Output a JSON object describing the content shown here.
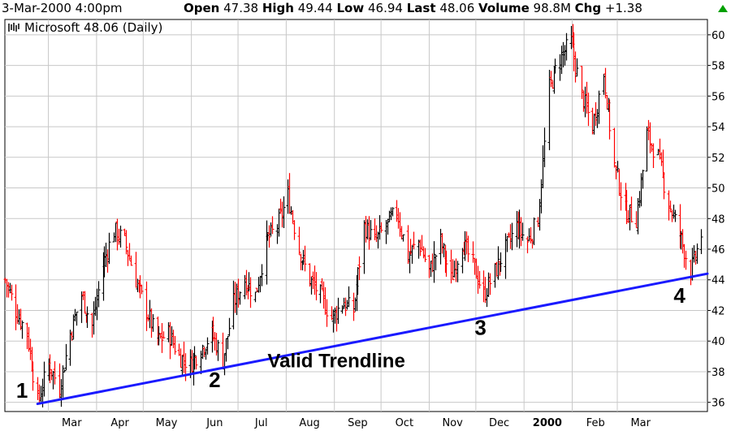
{
  "header": {
    "datetime": "3-Mar-2000 4:00pm",
    "open_label": "Open",
    "open_value": "47.38",
    "high_label": "High",
    "high_value": "49.44",
    "low_label": "Low",
    "low_value": "46.94",
    "last_label": "Last",
    "last_value": "48.06",
    "volume_label": "Volume",
    "volume_value": "98.8M",
    "chg_label": "Chg",
    "chg_value": "+1.38",
    "up_color": "#00a000"
  },
  "chart_data": {
    "type": "line",
    "style": "ohlc-bars",
    "legend": "Microsoft 48.06 (Daily)",
    "legend_placement": "top-left",
    "ylim": [
      35.4,
      61
    ],
    "y_ticks": [
      36,
      38,
      40,
      42,
      44,
      46,
      48,
      50,
      52,
      54,
      56,
      58,
      60
    ],
    "x_ticks": [
      "Mar",
      "Apr",
      "May",
      "Jun",
      "Jul",
      "Aug",
      "Sep",
      "Oct",
      "Nov",
      "Dec",
      "2000",
      "Feb",
      "Mar"
    ],
    "grid": true,
    "colors": {
      "up": "#000000",
      "down": "#ff0000",
      "trendline": "#1a1aff"
    },
    "price_path": [
      [
        "1999-02-01",
        44.0
      ],
      [
        "1999-02-08",
        42.0
      ],
      [
        "1999-02-15",
        40.5
      ],
      [
        "1999-02-22",
        36.0
      ],
      [
        "1999-03-01",
        38.5
      ],
      [
        "1999-03-08",
        37.0
      ],
      [
        "1999-03-15",
        40.5
      ],
      [
        "1999-03-22",
        43.0
      ],
      [
        "1999-03-29",
        41.0
      ],
      [
        "1999-04-05",
        45.0
      ],
      [
        "1999-04-12",
        47.2
      ],
      [
        "1999-04-19",
        46.5
      ],
      [
        "1999-04-26",
        44.0
      ],
      [
        "1999-05-03",
        42.0
      ],
      [
        "1999-05-10",
        40.0
      ],
      [
        "1999-05-17",
        40.5
      ],
      [
        "1999-05-24",
        39.0
      ],
      [
        "1999-05-31",
        38.5
      ],
      [
        "1999-06-07",
        39.5
      ],
      [
        "1999-06-14",
        40.5
      ],
      [
        "1999-06-21",
        38.8
      ],
      [
        "1999-06-28",
        42.5
      ],
      [
        "1999-07-05",
        44.0
      ],
      [
        "1999-07-12",
        43.0
      ],
      [
        "1999-07-19",
        46.5
      ],
      [
        "1999-07-26",
        47.5
      ],
      [
        "1999-08-02",
        49.5
      ],
      [
        "1999-08-09",
        46.0
      ],
      [
        "1999-08-16",
        44.0
      ],
      [
        "1999-08-23",
        43.0
      ],
      [
        "1999-08-30",
        41.5
      ],
      [
        "1999-09-06",
        42.5
      ],
      [
        "1999-09-13",
        42.0
      ],
      [
        "1999-09-20",
        47.5
      ],
      [
        "1999-09-27",
        46.5
      ],
      [
        "1999-10-04",
        47.5
      ],
      [
        "1999-10-11",
        48.5
      ],
      [
        "1999-10-18",
        45.5
      ],
      [
        "1999-10-25",
        46.5
      ],
      [
        "1999-11-01",
        44.5
      ],
      [
        "1999-11-08",
        46.5
      ],
      [
        "1999-11-15",
        44.0
      ],
      [
        "1999-11-22",
        46.5
      ],
      [
        "1999-11-29",
        45.0
      ],
      [
        "1999-12-06",
        43.0
      ],
      [
        "1999-12-13",
        44.5
      ],
      [
        "1999-12-20",
        46.0
      ],
      [
        "1999-12-27",
        47.5
      ],
      [
        "2000-01-03",
        46.5
      ],
      [
        "2000-01-10",
        48.0
      ],
      [
        "2000-01-17",
        56.5
      ],
      [
        "2000-01-24",
        58.5
      ],
      [
        "2000-01-31",
        59.5
      ],
      [
        "2000-02-07",
        56.0
      ],
      [
        "2000-02-14",
        54.0
      ],
      [
        "2000-02-21",
        57.5
      ],
      [
        "2000-02-28",
        51.5
      ],
      [
        "2000-03-06",
        48.5
      ],
      [
        "2000-03-13",
        48.0
      ],
      [
        "2000-03-20",
        53.5
      ],
      [
        "2000-03-27",
        52.0
      ],
      [
        "2000-04-03",
        49.0
      ],
      [
        "2000-04-10",
        47.0
      ],
      [
        "2000-04-17",
        44.5
      ],
      [
        "2000-04-24",
        47.0
      ]
    ],
    "trendline": {
      "from": [
        "1999-02-22",
        35.9
      ],
      "to": [
        "2000-04-28",
        44.4
      ],
      "label": "Valid Trendline"
    },
    "annotations": [
      {
        "text": "1",
        "x": "1999-02-12",
        "y": 36.3
      },
      {
        "text": "2",
        "x": "1999-06-16",
        "y": 37.0
      },
      {
        "text": "3",
        "x": "1999-12-04",
        "y": 40.4
      },
      {
        "text": "4",
        "x": "2000-04-10",
        "y": 42.5
      }
    ]
  }
}
